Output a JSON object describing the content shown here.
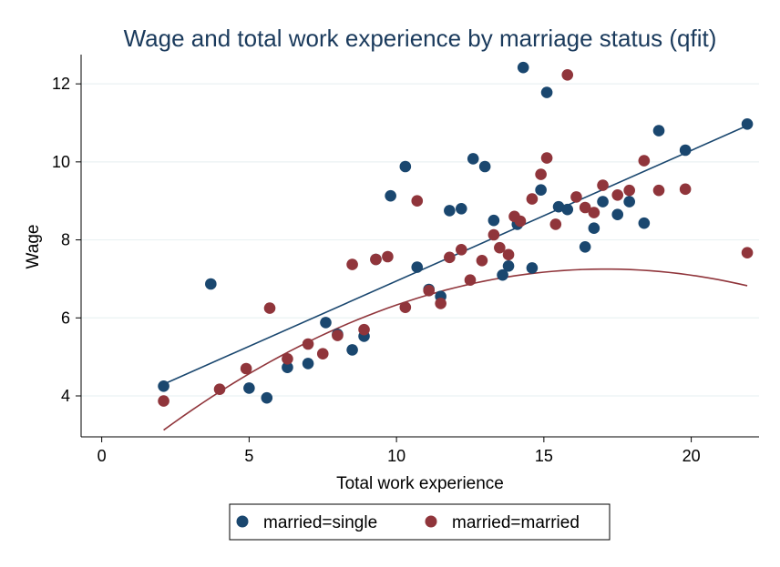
{
  "chart_data": {
    "type": "scatter",
    "title": "Wage and total work experience by marriage status (qfit)",
    "xlabel": "Total work experience",
    "ylabel": "Wage",
    "xlim": [
      -0.7,
      22.3
    ],
    "ylim": [
      2.95,
      12.75
    ],
    "xticks": [
      0,
      5,
      10,
      15,
      20
    ],
    "yticks": [
      4,
      6,
      8,
      10,
      12
    ],
    "grid": true,
    "legend_position": "bottom",
    "series": [
      {
        "name": "married=single",
        "color": "#1a476f",
        "points": [
          [
            2.1,
            4.25
          ],
          [
            3.7,
            6.87
          ],
          [
            5.0,
            4.2
          ],
          [
            5.6,
            3.95
          ],
          [
            6.3,
            4.73
          ],
          [
            7.0,
            4.83
          ],
          [
            7.6,
            5.88
          ],
          [
            8.0,
            5.58
          ],
          [
            8.5,
            5.18
          ],
          [
            8.9,
            5.53
          ],
          [
            9.3,
            7.5
          ],
          [
            9.8,
            9.13
          ],
          [
            10.3,
            9.88
          ],
          [
            10.7,
            7.3
          ],
          [
            11.1,
            6.73
          ],
          [
            11.5,
            6.55
          ],
          [
            11.8,
            8.75
          ],
          [
            12.2,
            8.8
          ],
          [
            12.6,
            10.08
          ],
          [
            13.0,
            9.88
          ],
          [
            13.3,
            8.5
          ],
          [
            13.6,
            7.1
          ],
          [
            13.8,
            7.33
          ],
          [
            14.1,
            8.4
          ],
          [
            14.3,
            12.42
          ],
          [
            14.6,
            7.28
          ],
          [
            14.9,
            9.28
          ],
          [
            15.1,
            11.78
          ],
          [
            15.5,
            8.85
          ],
          [
            15.8,
            8.78
          ],
          [
            16.4,
            7.82
          ],
          [
            16.7,
            8.3
          ],
          [
            17.0,
            8.98
          ],
          [
            17.5,
            8.65
          ],
          [
            17.9,
            8.98
          ],
          [
            18.4,
            8.43
          ],
          [
            18.9,
            10.8
          ],
          [
            19.8,
            10.3
          ],
          [
            21.9,
            10.97
          ]
        ],
        "fit": [
          [
            2.1,
            4.3
          ],
          [
            21.9,
            10.93
          ]
        ]
      },
      {
        "name": "married=married",
        "color": "#90353b",
        "points": [
          [
            2.1,
            3.87
          ],
          [
            4.0,
            4.17
          ],
          [
            4.9,
            4.7
          ],
          [
            5.7,
            6.25
          ],
          [
            6.3,
            4.95
          ],
          [
            7.0,
            5.33
          ],
          [
            7.5,
            5.08
          ],
          [
            8.0,
            5.55
          ],
          [
            8.5,
            7.37
          ],
          [
            8.9,
            5.7
          ],
          [
            9.3,
            7.5
          ],
          [
            9.7,
            7.57
          ],
          [
            10.3,
            6.27
          ],
          [
            10.7,
            9.0
          ],
          [
            11.1,
            6.7
          ],
          [
            11.5,
            6.37
          ],
          [
            11.8,
            7.55
          ],
          [
            12.2,
            7.75
          ],
          [
            12.5,
            6.97
          ],
          [
            12.9,
            7.47
          ],
          [
            13.3,
            8.13
          ],
          [
            13.5,
            7.8
          ],
          [
            13.8,
            7.62
          ],
          [
            14.0,
            8.6
          ],
          [
            14.2,
            8.48
          ],
          [
            14.6,
            9.05
          ],
          [
            14.9,
            9.68
          ],
          [
            15.1,
            10.1
          ],
          [
            15.4,
            8.4
          ],
          [
            15.8,
            12.23
          ],
          [
            16.1,
            9.1
          ],
          [
            16.4,
            8.83
          ],
          [
            16.7,
            8.7
          ],
          [
            17.0,
            9.4
          ],
          [
            17.5,
            9.15
          ],
          [
            17.9,
            9.27
          ],
          [
            18.4,
            10.03
          ],
          [
            18.9,
            9.27
          ],
          [
            19.8,
            9.3
          ],
          [
            21.9,
            7.67
          ]
        ],
        "fit_quadratic": {
          "a": -0.0184,
          "b": 0.6285,
          "c": 1.885,
          "x_range": [
            2.1,
            21.9
          ]
        }
      }
    ]
  }
}
